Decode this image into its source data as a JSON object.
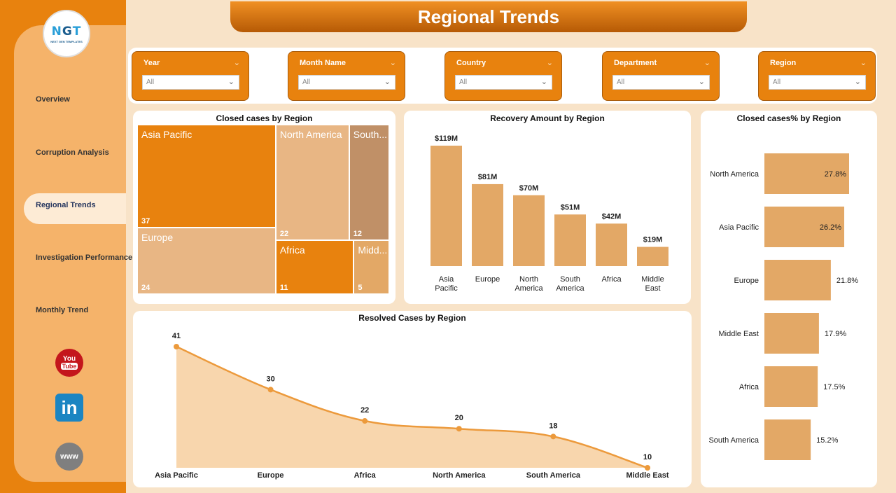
{
  "app": {
    "logo_text_a": "N",
    "logo_text_b": "G",
    "logo_text_c": "T",
    "logo_sub": "NEXT GEN TEMPLATES",
    "title": "Regional Trends"
  },
  "nav": [
    {
      "label": "Overview"
    },
    {
      "label": "Corruption Analysis"
    },
    {
      "label": "Regional Trends"
    },
    {
      "label": "Investigation Performance"
    },
    {
      "label": "Monthly Trend"
    }
  ],
  "social": {
    "youtube_a": "You",
    "youtube_b": "Tube",
    "linkedin": "in",
    "web": "www"
  },
  "slicers": [
    {
      "label": "Year",
      "value": "All"
    },
    {
      "label": "Month Name",
      "value": "All"
    },
    {
      "label": "Country",
      "value": "All"
    },
    {
      "label": "Department",
      "value": "All"
    },
    {
      "label": "Region",
      "value": "All"
    }
  ],
  "colors": {
    "orange": "#e8820e",
    "light": "#e8b684",
    "tan": "#c09067",
    "bar": "#e3a866",
    "area": "#f8d6ad",
    "line": "#ec9a3c"
  },
  "chart_data": [
    {
      "type": "treemap",
      "title": "Closed cases by Region",
      "categories": [
        "Asia Pacific",
        "Europe",
        "North America",
        "South...",
        "Africa",
        "Midd..."
      ],
      "values": [
        37,
        24,
        22,
        12,
        11,
        5
      ]
    },
    {
      "type": "bar",
      "title": "Recovery Amount by Region",
      "categories": [
        "Asia Pacific",
        "Europe",
        "North America",
        "South America",
        "Africa",
        "Middle East"
      ],
      "values": [
        119,
        81,
        70,
        51,
        42,
        19
      ],
      "labels": [
        "$119M",
        "$81M",
        "$70M",
        "$51M",
        "$42M",
        "$19M"
      ],
      "unit": "M"
    },
    {
      "type": "bar",
      "orientation": "horizontal",
      "title": "Closed cases% by Region",
      "categories": [
        "North America",
        "Asia Pacific",
        "Europe",
        "Middle East",
        "Africa",
        "South America"
      ],
      "values": [
        27.8,
        26.2,
        21.8,
        17.9,
        17.5,
        15.2
      ],
      "labels": [
        "27.8%",
        "26.2%",
        "21.8%",
        "17.9%",
        "17.5%",
        "15.2%"
      ]
    },
    {
      "type": "area",
      "title": "Resolved Cases by Region",
      "categories": [
        "Asia Pacific",
        "Europe",
        "Africa",
        "North America",
        "South America",
        "Middle East"
      ],
      "values": [
        41,
        30,
        22,
        20,
        18,
        10
      ]
    }
  ]
}
